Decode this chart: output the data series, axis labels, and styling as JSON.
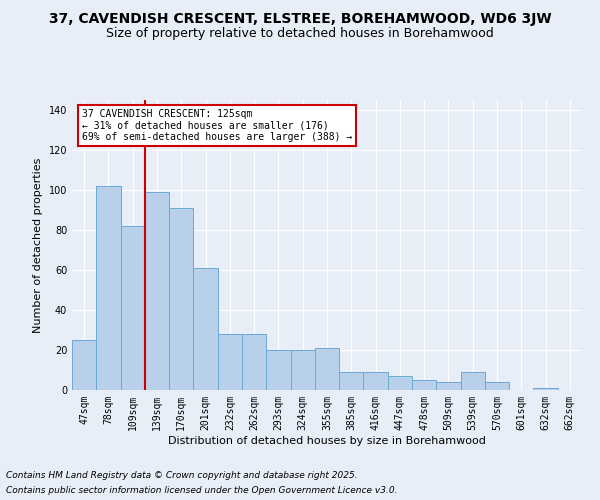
{
  "title": "37, CAVENDISH CRESCENT, ELSTREE, BOREHAMWOOD, WD6 3JW",
  "subtitle": "Size of property relative to detached houses in Borehamwood",
  "xlabel": "Distribution of detached houses by size in Borehamwood",
  "ylabel": "Number of detached properties",
  "categories": [
    "47sqm",
    "78sqm",
    "109sqm",
    "139sqm",
    "170sqm",
    "201sqm",
    "232sqm",
    "262sqm",
    "293sqm",
    "324sqm",
    "355sqm",
    "385sqm",
    "416sqm",
    "447sqm",
    "478sqm",
    "509sqm",
    "539sqm",
    "570sqm",
    "601sqm",
    "632sqm",
    "662sqm"
  ],
  "values": [
    25,
    102,
    82,
    99,
    91,
    61,
    28,
    28,
    20,
    20,
    21,
    9,
    9,
    7,
    5,
    4,
    9,
    4,
    0,
    1,
    0
  ],
  "bar_color": "#b8d0ea",
  "bar_edge_color": "#6aaad4",
  "red_line_color": "#cc0000",
  "red_line_x": 2.5,
  "annotation_text": "37 CAVENDISH CRESCENT: 125sqm\n← 31% of detached houses are smaller (176)\n69% of semi-detached houses are larger (388) →",
  "annotation_box_color": "#ffffff",
  "annotation_box_edge": "#cc0000",
  "footer_line1": "Contains HM Land Registry data © Crown copyright and database right 2025.",
  "footer_line2": "Contains public sector information licensed under the Open Government Licence v3.0.",
  "ylim": [
    0,
    145
  ],
  "yticks": [
    0,
    20,
    40,
    60,
    80,
    100,
    120,
    140
  ],
  "bg_color": "#e8eef8",
  "grid_color": "#ffffff",
  "title_fontsize": 10,
  "subtitle_fontsize": 9,
  "axis_label_fontsize": 8,
  "tick_fontsize": 7,
  "annotation_fontsize": 7,
  "footer_fontsize": 6.5
}
